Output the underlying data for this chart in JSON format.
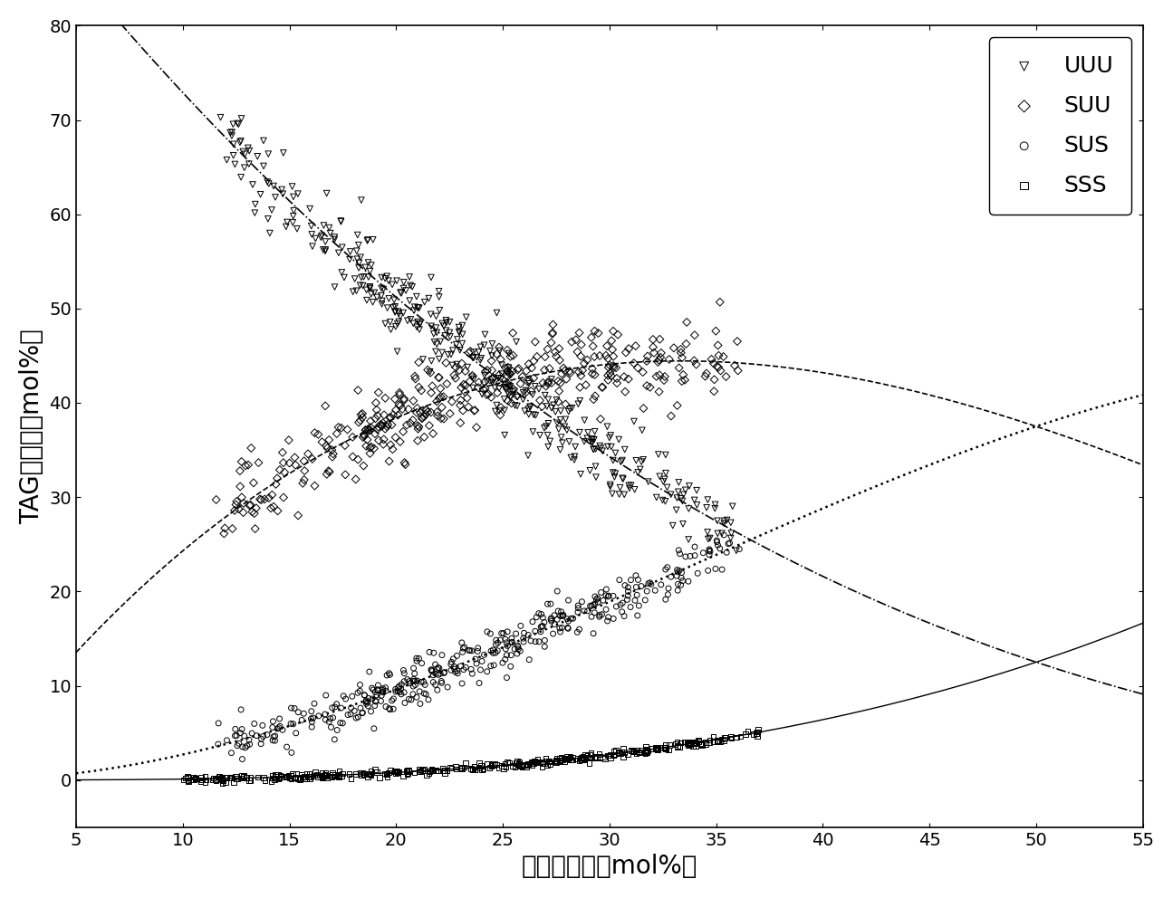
{
  "xlabel": "饱和脂肪酸（mol%）",
  "ylabel": "TAG类物质（mol%）",
  "xlim": [
    5,
    55
  ],
  "ylim": [
    -5,
    80
  ],
  "xticks": [
    5,
    10,
    15,
    20,
    25,
    30,
    35,
    40,
    45,
    50,
    55
  ],
  "yticks": [
    0,
    10,
    20,
    30,
    40,
    50,
    60,
    70,
    80
  ],
  "legend_entries": [
    "UUU",
    "SUU",
    "SUS",
    "SSS"
  ],
  "markers": [
    "v",
    "D",
    "o",
    "s"
  ],
  "color": "black",
  "font_size_label": 20,
  "font_size_tick": 14,
  "font_size_legend": 18
}
